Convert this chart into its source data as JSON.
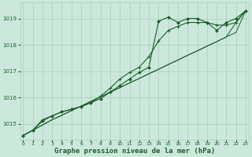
{
  "bg_color": "#cce8dc",
  "grid_color": "#aaccbb",
  "line_color": "#1a5e2a",
  "marker_color": "#1a5e2a",
  "xlabel": "Graphe pression niveau de la mer (hPa)",
  "xlabel_fontsize": 6.5,
  "xticks": [
    0,
    1,
    2,
    3,
    4,
    5,
    6,
    7,
    8,
    9,
    10,
    11,
    12,
    13,
    14,
    15,
    16,
    17,
    18,
    19,
    20,
    21,
    22,
    23
  ],
  "yticks": [
    1015,
    1016,
    1017,
    1018,
    1019
  ],
  "ylim": [
    1014.4,
    1019.6
  ],
  "xlim": [
    -0.3,
    23.3
  ],
  "series_straight1": [
    1014.55,
    1014.75,
    1014.95,
    1015.15,
    1015.32,
    1015.5,
    1015.67,
    1015.85,
    1016.02,
    1016.2,
    1016.37,
    1016.55,
    1016.72,
    1016.9,
    1017.07,
    1017.25,
    1017.42,
    1017.6,
    1017.77,
    1017.95,
    1018.12,
    1018.3,
    1018.47,
    1019.3
  ],
  "series_straight2": [
    1014.55,
    1014.75,
    1014.95,
    1015.15,
    1015.32,
    1015.5,
    1015.67,
    1015.85,
    1016.02,
    1016.2,
    1016.37,
    1016.55,
    1016.72,
    1016.9,
    1017.07,
    1017.25,
    1017.42,
    1017.6,
    1017.77,
    1017.95,
    1018.12,
    1018.3,
    1018.85,
    1019.3
  ],
  "series_diamond": [
    1014.55,
    1014.75,
    1015.1,
    1015.3,
    1015.45,
    1015.55,
    1015.65,
    1015.8,
    1015.95,
    1016.2,
    1016.45,
    1016.7,
    1016.95,
    1017.15,
    1018.9,
    1019.05,
    1018.85,
    1019.0,
    1019.0,
    1018.85,
    1018.55,
    1018.85,
    1019.0,
    1019.3
  ],
  "series_cross": [
    1014.55,
    1014.75,
    1015.15,
    1015.3,
    1015.45,
    1015.55,
    1015.65,
    1015.8,
    1016.05,
    1016.35,
    1016.7,
    1016.95,
    1017.15,
    1017.55,
    1018.15,
    1018.55,
    1018.7,
    1018.85,
    1018.85,
    1018.85,
    1018.75,
    1018.75,
    1018.85,
    1019.3
  ]
}
